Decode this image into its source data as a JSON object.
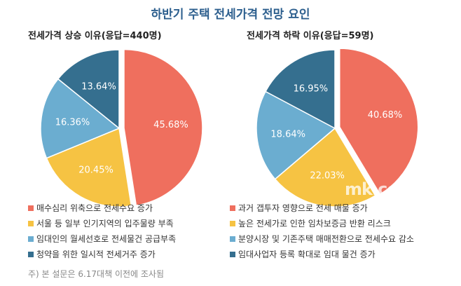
{
  "title": "하반기 주택 전세가격 전망 요인",
  "note": "주) 본 설문은 6.17대책 이전에 조사됨",
  "watermark": "mk.co.kr",
  "chart_data": [
    {
      "type": "pie",
      "title": "전세가격 상승 이유(응답=440명)",
      "categories": [
        "매수심리 위축으로 전세수요 증가",
        "서울 등 일부 인기지역의 입주물량 부족",
        "임대인의 월세선호로 전세물건 공급부족",
        "청약을 위한 일시적 전세거주 증가"
      ],
      "values": [
        45.68,
        20.45,
        16.36,
        13.64
      ],
      "labels": [
        "45.68%",
        "20.45%",
        "16.36%",
        "13.64%"
      ],
      "colors": [
        "#ef6f5e",
        "#f6c343",
        "#6badd0",
        "#356f8f"
      ],
      "legend": "bottom"
    },
    {
      "type": "pie",
      "title": "전세가격 하락 이유(응답=59명)",
      "categories": [
        "과거 갭투자 영향으로 전세 매물 증가",
        "높은 전세가로 인한 임차보증금 반환 리스크",
        "분양시장 및 기존주택 매매전환으로 전세수요 감소",
        "임대사업자 등록 확대로 임대 물건 증가"
      ],
      "values": [
        40.68,
        22.03,
        18.64,
        16.95
      ],
      "labels": [
        "40.68%",
        "22.03%",
        "18.64%",
        "16.95%"
      ],
      "colors": [
        "#ef6f5e",
        "#f6c343",
        "#6badd0",
        "#356f8f"
      ],
      "legend": "bottom"
    }
  ]
}
